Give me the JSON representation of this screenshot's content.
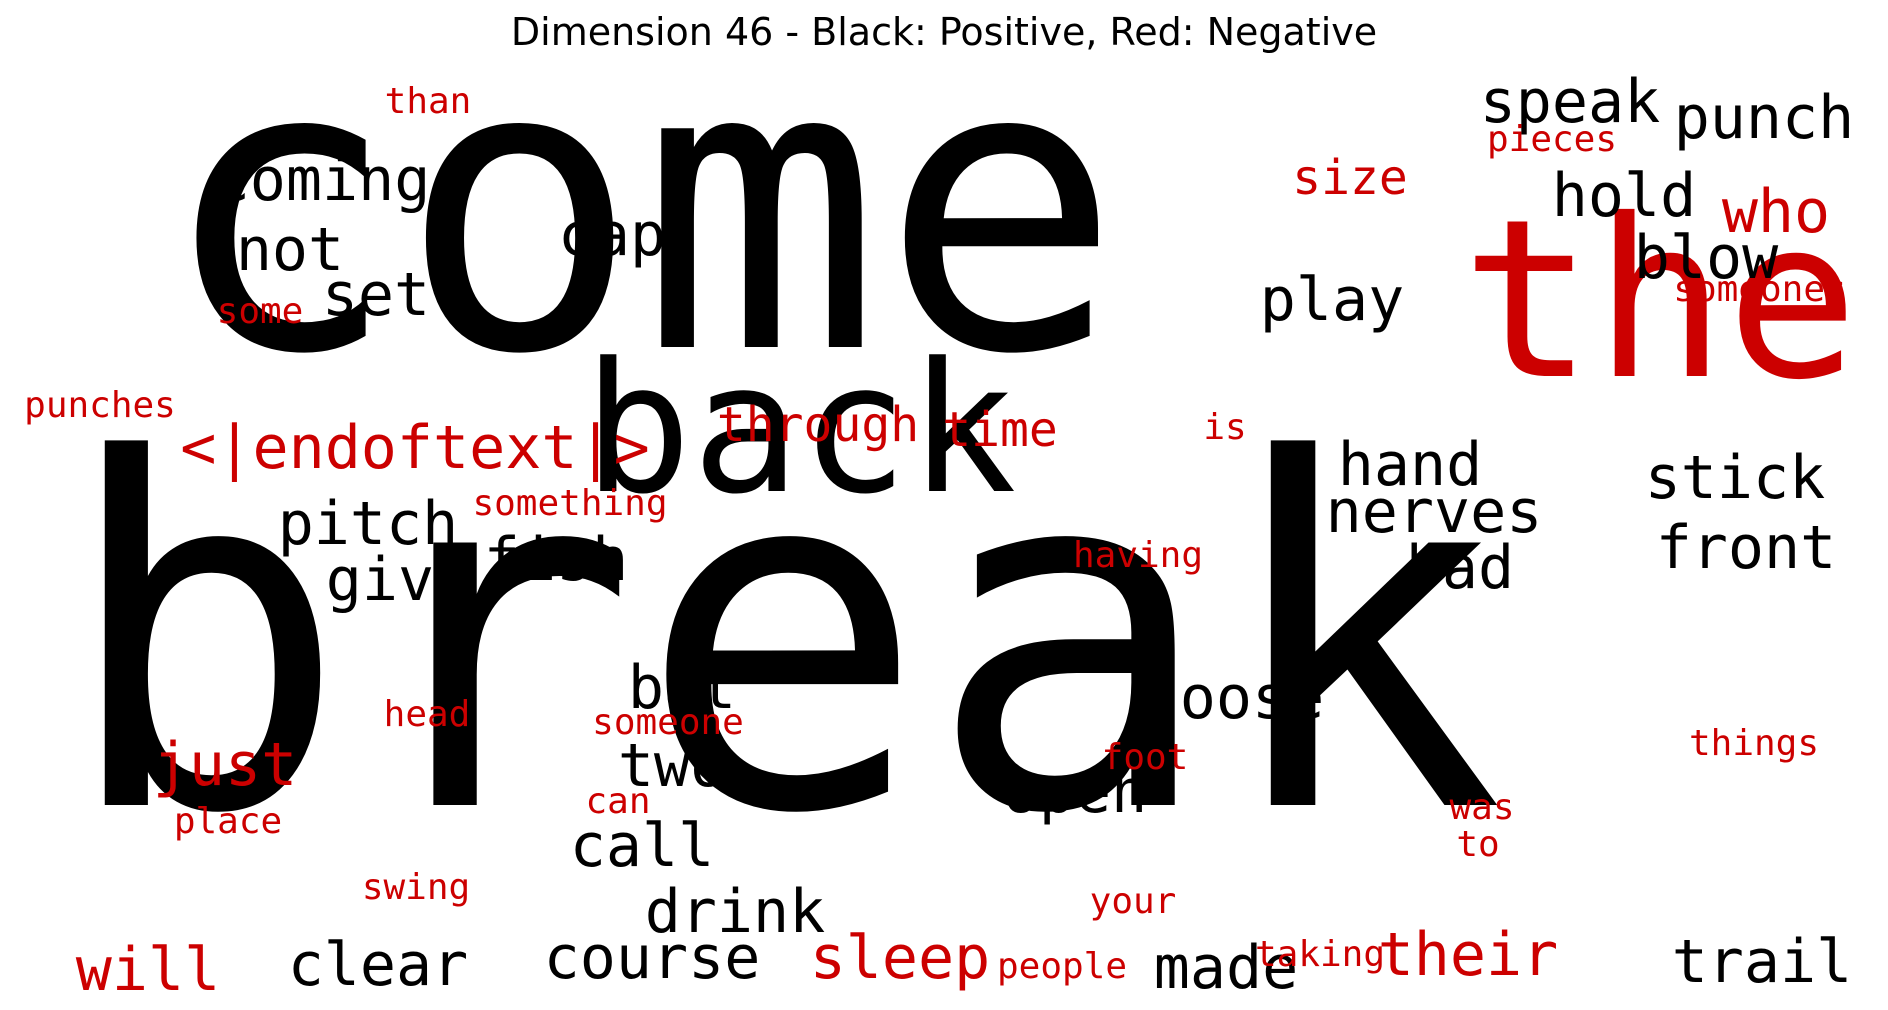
{
  "title": "Dimension 46 - Black: Positive, Red: Negative",
  "colors": {
    "positive": "#000000",
    "negative": "#cc0000"
  },
  "words": [
    {
      "text": "come",
      "polarity": "positive"
    },
    {
      "text": "break",
      "polarity": "positive"
    },
    {
      "text": "back",
      "polarity": "positive"
    },
    {
      "text": "the",
      "polarity": "negative"
    },
    {
      "text": "coming",
      "polarity": "positive"
    },
    {
      "text": "not",
      "polarity": "positive"
    },
    {
      "text": "cap",
      "polarity": "positive"
    },
    {
      "text": "set",
      "polarity": "positive"
    },
    {
      "text": "speak",
      "polarity": "positive"
    },
    {
      "text": "punch",
      "polarity": "positive"
    },
    {
      "text": "hold",
      "polarity": "positive"
    },
    {
      "text": "blow",
      "polarity": "positive"
    },
    {
      "text": "play",
      "polarity": "positive"
    },
    {
      "text": "hand",
      "polarity": "positive"
    },
    {
      "text": "nerves",
      "polarity": "positive"
    },
    {
      "text": "stick",
      "polarity": "positive"
    },
    {
      "text": "front",
      "polarity": "positive"
    },
    {
      "text": "bad",
      "polarity": "positive"
    },
    {
      "text": "pitch",
      "polarity": "positive"
    },
    {
      "text": "give",
      "polarity": "positive"
    },
    {
      "text": "fish",
      "polarity": "positive"
    },
    {
      "text": "bat",
      "polarity": "positive"
    },
    {
      "text": "two",
      "polarity": "positive"
    },
    {
      "text": "loose",
      "polarity": "positive"
    },
    {
      "text": "open",
      "polarity": "positive"
    },
    {
      "text": "call",
      "polarity": "positive"
    },
    {
      "text": "drink",
      "polarity": "positive"
    },
    {
      "text": "clear",
      "polarity": "positive"
    },
    {
      "text": "course",
      "polarity": "positive"
    },
    {
      "text": "made",
      "polarity": "positive"
    },
    {
      "text": "trail",
      "polarity": "positive"
    },
    {
      "text": "than",
      "polarity": "negative"
    },
    {
      "text": "size",
      "polarity": "negative"
    },
    {
      "text": "pieces",
      "polarity": "negative"
    },
    {
      "text": "who",
      "polarity": "negative"
    },
    {
      "text": "someones",
      "polarity": "negative"
    },
    {
      "text": "some",
      "polarity": "negative"
    },
    {
      "text": "punches",
      "polarity": "negative"
    },
    {
      "text": "<|endoftext|>",
      "polarity": "negative"
    },
    {
      "text": "through",
      "polarity": "negative"
    },
    {
      "text": "time",
      "polarity": "negative"
    },
    {
      "text": "is",
      "polarity": "negative"
    },
    {
      "text": "something",
      "polarity": "negative"
    },
    {
      "text": "having",
      "polarity": "negative"
    },
    {
      "text": "head",
      "polarity": "negative"
    },
    {
      "text": "someone",
      "polarity": "negative"
    },
    {
      "text": "just",
      "polarity": "negative"
    },
    {
      "text": "can",
      "polarity": "negative"
    },
    {
      "text": "place",
      "polarity": "negative"
    },
    {
      "text": "foot",
      "polarity": "negative"
    },
    {
      "text": "was",
      "polarity": "negative"
    },
    {
      "text": "to",
      "polarity": "negative"
    },
    {
      "text": "things",
      "polarity": "negative"
    },
    {
      "text": "swing",
      "polarity": "negative"
    },
    {
      "text": "your",
      "polarity": "negative"
    },
    {
      "text": "will",
      "polarity": "negative"
    },
    {
      "text": "sleep",
      "polarity": "negative"
    },
    {
      "text": "people",
      "polarity": "negative"
    },
    {
      "text": "taking",
      "polarity": "negative"
    },
    {
      "text": "their",
      "polarity": "negative"
    }
  ]
}
